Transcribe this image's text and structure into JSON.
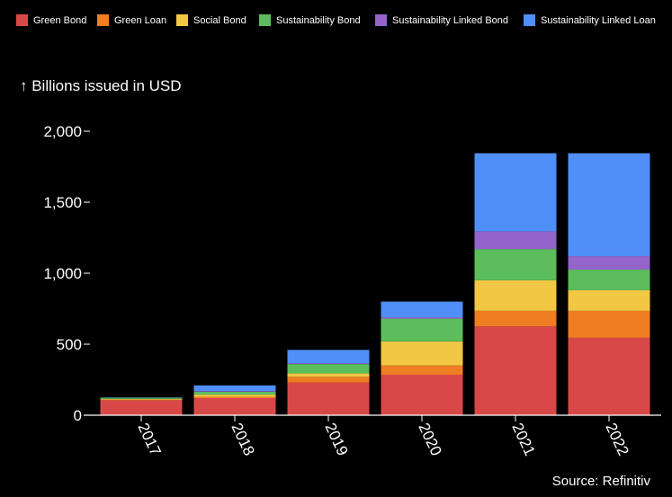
{
  "chart_data": {
    "type": "bar",
    "stacked": true,
    "ylabel": "↑ Billions issued in USD",
    "ylim": [
      0,
      2000
    ],
    "yticks": [
      0,
      500,
      1000,
      1500,
      2000
    ],
    "ytick_labels": [
      "0",
      "500",
      "1,000",
      "1,500",
      "2,000"
    ],
    "categories": [
      "2017",
      "2018",
      "2019",
      "2020",
      "2021",
      "2022"
    ],
    "legend_position": "top",
    "source": "Source: Refinitiv",
    "series": [
      {
        "name": "Green Bond",
        "color": "#d94848",
        "values": [
          105,
          120,
          230,
          285,
          625,
          545
        ]
      },
      {
        "name": "Green Loan",
        "color": "#ef7d22",
        "values": [
          5,
          10,
          40,
          65,
          110,
          190
        ]
      },
      {
        "name": "Social Bond",
        "color": "#f2c744",
        "values": [
          5,
          15,
          25,
          170,
          215,
          145
        ]
      },
      {
        "name": "Sustainability Bond",
        "color": "#5cbd5c",
        "values": [
          8,
          20,
          65,
          160,
          220,
          145
        ]
      },
      {
        "name": "Sustainability Linked Bond",
        "color": "#9364c9",
        "values": [
          0,
          5,
          5,
          10,
          125,
          95
        ]
      },
      {
        "name": "Sustainability Linked Loan",
        "color": "#4f8ff7",
        "values": [
          2,
          40,
          95,
          110,
          550,
          725
        ]
      }
    ]
  }
}
